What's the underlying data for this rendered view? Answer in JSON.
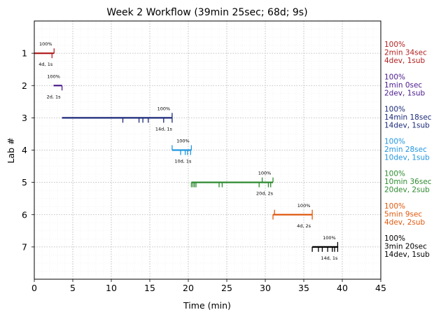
{
  "chart_data": {
    "type": "timeline",
    "title": "Week 2 Workflow (39min 25sec; 68d; 9s)",
    "xlabel": "Time (min)",
    "ylabel": "Lab #",
    "xlim": [
      0,
      45
    ],
    "ylim": [
      8,
      0
    ],
    "xticks": [
      "0",
      "5",
      "10",
      "15",
      "20",
      "25",
      "30",
      "35",
      "40",
      "45"
    ],
    "yticks": [
      "1",
      "2",
      "3",
      "4",
      "5",
      "6",
      "7"
    ],
    "grid": true,
    "series": [
      {
        "lab": 1,
        "color": "#b22222",
        "start": 0.0,
        "end": 2.57,
        "sub_marks": [
          2.57
        ],
        "dev_marks": [
          2.3
        ],
        "pct_label": "100%",
        "count_label": "4d, 1s",
        "summary": [
          "100%",
          "2min 34sec",
          "4dev, 1sub"
        ]
      },
      {
        "lab": 2,
        "color": "#4b1a8c",
        "start": 2.5,
        "end": 3.6,
        "sub_marks": [],
        "dev_marks": [
          3.6
        ],
        "pct_label": "100%",
        "count_label": "2d, 1s",
        "summary": [
          "100%",
          "1min 0sec",
          "2dev, 1sub"
        ]
      },
      {
        "lab": 3,
        "color": "#1b2a78",
        "start": 3.6,
        "end": 17.9,
        "sub_marks": [
          17.9
        ],
        "dev_marks": [
          11.5,
          13.6,
          14.1,
          14.8,
          16.8,
          17.9
        ],
        "pct_label": "100%",
        "count_label": "14d, 1s",
        "summary": [
          "100%",
          "14min 18sec",
          "14dev, 1sub"
        ]
      },
      {
        "lab": 4,
        "color": "#2196e0",
        "start": 17.9,
        "end": 20.4,
        "sub_marks": [
          17.9,
          20.4
        ],
        "dev_marks": [
          19.0,
          19.6,
          19.9,
          20.3
        ],
        "pct_label": "100%",
        "count_label": "10d, 1s",
        "summary": [
          "100%",
          "2min 28sec",
          "10dev, 1sub"
        ]
      },
      {
        "lab": 5,
        "color": "#2e8b30",
        "start": 20.4,
        "end": 31.0,
        "sub_marks": [
          29.6,
          31.0
        ],
        "dev_marks": [
          20.4,
          20.6,
          20.8,
          21.0,
          24.0,
          24.4,
          29.2,
          30.4,
          30.7
        ],
        "pct_label": "100%",
        "count_label": "20d, 2s",
        "summary": [
          "100%",
          "10min 36sec",
          "20dev, 2sub"
        ]
      },
      {
        "lab": 6,
        "color": "#e05a10",
        "start": 31.0,
        "end": 36.1,
        "sub_marks": [
          31.2,
          36.1
        ],
        "dev_marks": [
          31.0,
          36.1
        ],
        "pct_label": "100%",
        "count_label": "4d, 2s",
        "summary": [
          "100%",
          "5min 9sec",
          "4dev, 2sub"
        ]
      },
      {
        "lab": 7,
        "color": "#000000",
        "start": 36.1,
        "end": 39.4,
        "sub_marks": [
          39.4
        ],
        "dev_marks": [
          36.1,
          36.9,
          37.4,
          38.1,
          38.7,
          39.0,
          39.4
        ],
        "pct_label": "100%",
        "count_label": "14d, 1s",
        "summary": [
          "100%",
          "3min 20sec",
          "14dev, 1sub"
        ]
      }
    ]
  }
}
